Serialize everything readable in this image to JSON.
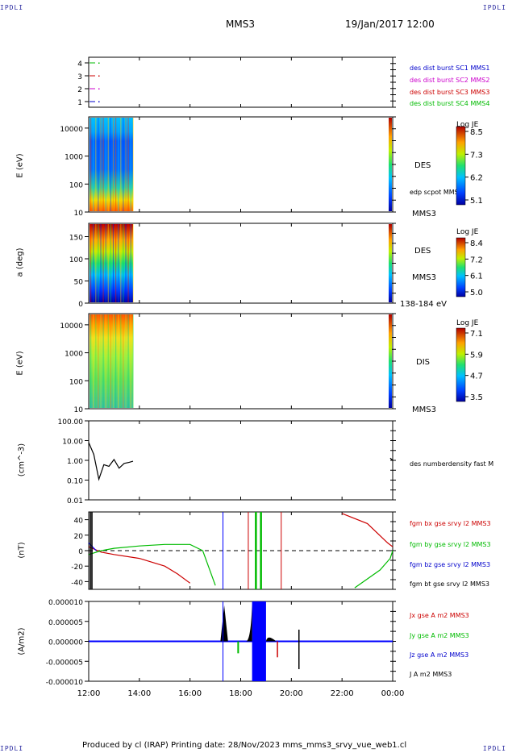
{
  "header": {
    "corner_tl": "IPDLI",
    "corner_tr": "IPDLI",
    "corner_bl": "IPDLI",
    "corner_br": "IPDLI",
    "spacecraft": "MMS3",
    "date_time": "19/Jan/2017 12:00"
  },
  "footer": {
    "text": "Produced by cl (IRAP)   Printing date: 28/Nov/2023   mms_mms3_srvy_vue_web1.cl"
  },
  "colors": {
    "mms1": "#0000cc",
    "mms2": "#cc00cc",
    "mms3": "#cc0000",
    "mms4": "#00bb00",
    "black": "#000000",
    "blue": "#0000ff"
  },
  "chart_data": [
    {
      "type": "scatter",
      "panel": "burst availability",
      "yticks": [
        "1",
        "2",
        "3",
        "4"
      ],
      "legend": [
        "des dist burst SC1 MMS1",
        "des dist burst SC2 MMS2",
        "des dist burst SC3 MMS3",
        "des dist burst SC4 MMS4"
      ]
    },
    {
      "type": "heatmap",
      "panel": "DES energy spectrogram",
      "ylabel": "E (eV)",
      "yticks": [
        "10",
        "100",
        "1000",
        "10000"
      ],
      "label": "DES",
      "label2": "MMS3",
      "extra_label": "edp scpot MMS3",
      "colorbar": {
        "title": "Log JE",
        "ticks": [
          "8.5",
          "7.3",
          "6.2",
          "5.1"
        ]
      }
    },
    {
      "type": "heatmap",
      "panel": "DES pitch angle",
      "ylabel": "a (deg)",
      "yticks": [
        "0",
        "50",
        "100",
        "150"
      ],
      "label": "DES",
      "label2": "MMS3",
      "energy_range": "138-184 eV",
      "colorbar": {
        "title": "Log JE",
        "ticks": [
          "8.4",
          "7.2",
          "6.1",
          "5.0"
        ]
      }
    },
    {
      "type": "heatmap",
      "panel": "DIS energy spectrogram",
      "ylabel": "E (eV)",
      "yticks": [
        "10",
        "100",
        "1000",
        "10000"
      ],
      "label": "DIS",
      "label2": "MMS3",
      "colorbar": {
        "title": "Log JE",
        "ticks": [
          "7.1",
          "5.9",
          "4.7",
          "3.5"
        ]
      }
    },
    {
      "type": "line",
      "panel": "density",
      "ylabel": "(cm^-3)",
      "yticks": [
        "0.01",
        "0.10",
        "1.00",
        "10.00",
        "100.00"
      ],
      "ylim": [
        0.01,
        100
      ],
      "series": [
        {
          "name": "des numberdensity fast M",
          "x": [
            12.0,
            12.2,
            12.4,
            12.6,
            12.8,
            13.0,
            13.2,
            13.4,
            13.6,
            13.75,
            23.9,
            24.0
          ],
          "values": [
            8,
            2.0,
            0.11,
            0.6,
            0.5,
            1.1,
            0.4,
            0.7,
            0.8,
            0.9,
            1.3,
            1.0
          ]
        }
      ]
    },
    {
      "type": "line",
      "panel": "magnetic field",
      "ylabel": "(nT)",
      "yticks": [
        "-40",
        "-20",
        "0",
        "20",
        "40"
      ],
      "ylim": [
        -50,
        50
      ],
      "series": [
        {
          "name": "fgm bx gse srvy l2 MMS3",
          "x": [
            12.0,
            12.5,
            13.0,
            14.0,
            15.0,
            15.5,
            16.0,
            22.0,
            23.0,
            23.8,
            24.0
          ],
          "values": [
            5,
            -2,
            -5,
            -10,
            -20,
            -30,
            -42,
            48,
            35,
            10,
            5
          ]
        },
        {
          "name": "fgm by gse srvy l2 MMS3",
          "x": [
            12.0,
            12.5,
            13.0,
            14.0,
            15.0,
            16.0,
            16.5,
            17.0,
            22.5,
            23.5,
            23.9,
            24.0
          ],
          "values": [
            -5,
            0,
            3,
            6,
            8,
            8,
            0,
            -45,
            -48,
            -25,
            -10,
            0
          ]
        },
        {
          "name": "fgm bz gse srvy l2 MMS3",
          "x": [
            12.0,
            12.3,
            24.0
          ],
          "values": [
            10,
            0,
            0
          ]
        },
        {
          "name": "fgm bt gse srvy l2 MMS3",
          "x": [],
          "values": []
        }
      ]
    },
    {
      "type": "line",
      "panel": "current density",
      "ylabel": "(A/m2)",
      "yticks": [
        "-0.000010",
        "-0.000005",
        "0.000000",
        "0.000005",
        "0.000010"
      ],
      "ylim": [
        -1e-05,
        1e-05
      ],
      "xticks": [
        "12:00",
        "14:00",
        "16:00",
        "18:00",
        "20:00",
        "22:00",
        "00:00"
      ],
      "series": [
        {
          "name": "Jx gse A m2 MMS3"
        },
        {
          "name": "Jy gse A m2 MMS3"
        },
        {
          "name": "Jz gse A m2 MMS3"
        },
        {
          "name": "J A m2 MMS3"
        }
      ]
    }
  ]
}
